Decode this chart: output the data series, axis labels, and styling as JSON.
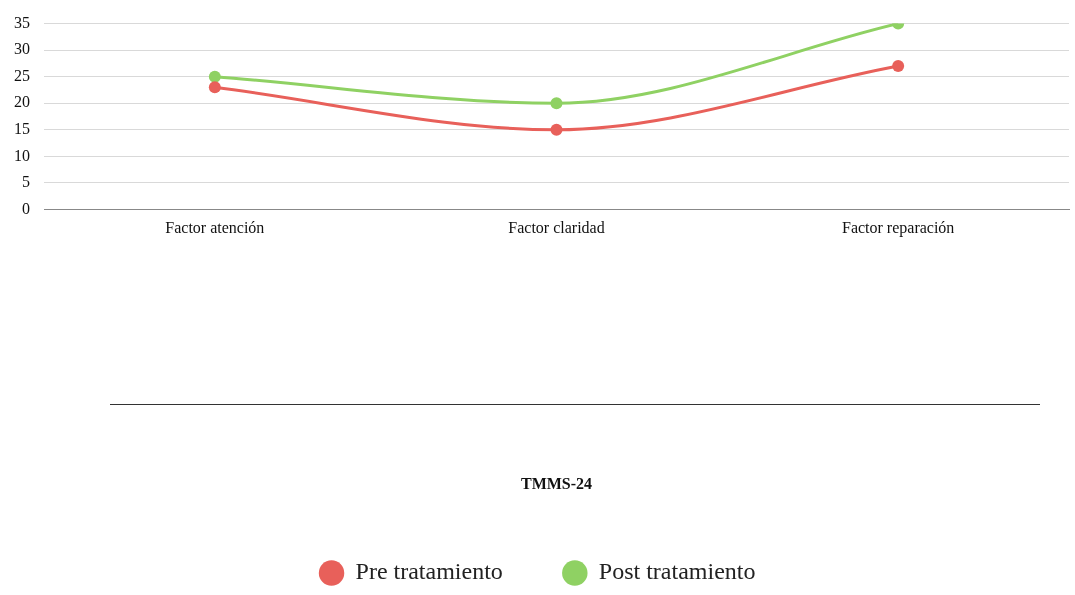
{
  "chart_data": {
    "type": "line",
    "annotations": [
      "TMMS-24"
    ],
    "categories": [
      "Factor atención",
      "Factor claridad",
      "Factor reparación"
    ],
    "series": [
      {
        "name": "Pre tratamiento",
        "color": "#e8605a",
        "values": [
          23,
          15,
          27
        ]
      },
      {
        "name": "Post tratamiento",
        "color": "#8fd163",
        "values": [
          25,
          20,
          35
        ]
      }
    ],
    "ylim": [
      0,
      35
    ],
    "yticks": [
      0,
      5,
      10,
      15,
      20,
      25,
      30,
      35
    ],
    "grid": "y",
    "legend": "bottom",
    "marker": "circle",
    "line_style": "solid"
  }
}
